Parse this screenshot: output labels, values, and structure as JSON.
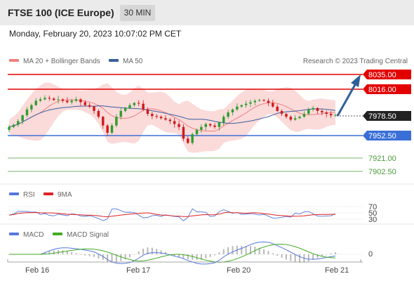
{
  "header": {
    "title": "FTSE 100 (ICE Europe)",
    "timeframe": "30 MIN"
  },
  "datetime": "Monday, February 20, 2023 10:07:02 PM CET",
  "credit": "Research © 2023 Trading Central",
  "colors": {
    "resistance": "#e30000",
    "support": "#3a6fd8",
    "target_support": "#4a9a3a",
    "ma20": "#f08080",
    "ma50": "#3a5f9f",
    "bollinger_fill": "#fad4d4",
    "candle_up": "#2e9e2e",
    "candle_down": "#d11a1a",
    "arrow": "#2f5f9a",
    "rsi": "#5577dd",
    "rsi_9ma": "#dd2222",
    "macd": "#5577dd",
    "macd_signal": "#44aa22"
  },
  "legends": {
    "main": [
      {
        "label": "MA 20 + Bollinger Bands",
        "color": "#f08080"
      },
      {
        "label": "MA 50",
        "color": "#3a5f9f"
      }
    ],
    "rsi": [
      {
        "label": "RSI",
        "color": "#5577dd"
      },
      {
        "label": "9MA",
        "color": "#dd2222"
      }
    ],
    "macd": [
      {
        "label": "MACD",
        "color": "#5577dd"
      },
      {
        "label": "MACD Signal",
        "color": "#44aa22"
      }
    ]
  },
  "chart_data": [
    {
      "type": "candlestick",
      "title": "FTSE 100 (ICE Europe)",
      "timeframe": "30 MIN",
      "x_ticks": [
        "Feb 16",
        "Feb 17",
        "Feb 20",
        "Feb 21"
      ],
      "ylim": [
        7895,
        8040
      ],
      "last_price": "7978.50",
      "levels": [
        {
          "value": "8035.00",
          "kind": "resistance"
        },
        {
          "value": "8016.00",
          "kind": "resistance"
        },
        {
          "value": "7952.50",
          "kind": "support"
        },
        {
          "value": "7921.00",
          "kind": "target_support"
        },
        {
          "value": "7902.50",
          "kind": "target_support"
        }
      ],
      "close_series": [
        7962,
        7965,
        7970,
        7978,
        7986,
        7992,
        7998,
        8000,
        8002,
        8001,
        7999,
        8000,
        7998,
        7996,
        7998,
        8000,
        7996,
        7992,
        7990,
        7984,
        7976,
        7964,
        7954,
        7964,
        7976,
        7984,
        7988,
        7992,
        7995,
        7994,
        7986,
        7980,
        7977,
        7976,
        7974,
        7972,
        7970,
        7966,
        7962,
        7946,
        7940,
        7952,
        7958,
        7962,
        7966,
        7964,
        7962,
        7968,
        7976,
        7982,
        7986,
        7990,
        7992,
        7994,
        7996,
        7998,
        7999,
        7998,
        7995,
        7990,
        7984,
        7980,
        7976,
        7972,
        7974,
        7976,
        7980,
        7986,
        7988,
        7984,
        7982,
        7980,
        7978,
        7978.5
      ]
    },
    {
      "type": "line",
      "title": "RSI",
      "series": [
        {
          "name": "RSI"
        },
        {
          "name": "9MA"
        }
      ],
      "y_ticks": [
        "70",
        "50",
        "30"
      ]
    },
    {
      "type": "line",
      "title": "MACD",
      "series": [
        {
          "name": "MACD"
        },
        {
          "name": "MACD Signal"
        }
      ],
      "y_ticks": [
        "0"
      ]
    }
  ]
}
